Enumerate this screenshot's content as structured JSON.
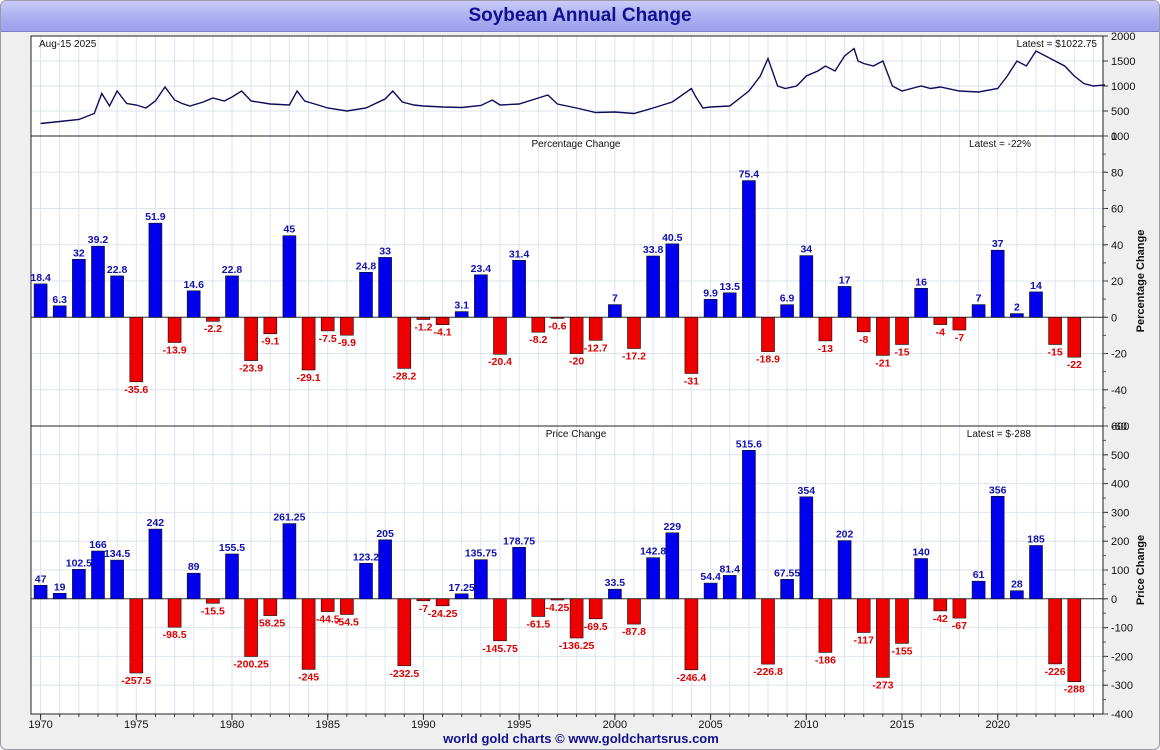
{
  "title": "Soybean Annual Change",
  "footer": "world gold charts © www.goldchartsrus.com",
  "chart_data": [
    {
      "type": "line",
      "name": "price",
      "date_label": "Aug-15  2025",
      "latest_label": "Latest = $1022.75",
      "ylim": [
        0,
        2000
      ],
      "yticks": [
        0,
        500,
        1000,
        1500,
        2000
      ],
      "xlim": [
        1969.5,
        2025.5
      ],
      "x": [
        1970,
        1971,
        1972,
        1972.8,
        1973.2,
        1973.6,
        1974,
        1974.5,
        1975,
        1975.5,
        1976,
        1976.5,
        1977,
        1977.4,
        1977.8,
        1978.5,
        1979,
        1979.6,
        1980,
        1980.5,
        1981,
        1982,
        1983,
        1983.4,
        1983.8,
        1984.5,
        1985,
        1986,
        1987,
        1988,
        1988.4,
        1988.9,
        1989.5,
        1990,
        1991,
        1992,
        1993,
        1993.6,
        1994,
        1995,
        1996,
        1996.5,
        1997,
        1998,
        1999,
        2000,
        2001,
        2002,
        2003,
        2004,
        2004.2,
        2004.6,
        2005,
        2006,
        2007,
        2007.6,
        2008,
        2008.5,
        2008.9,
        2009.5,
        2010,
        2010.6,
        2011,
        2011.5,
        2012,
        2012.5,
        2012.7,
        2013,
        2013.5,
        2014,
        2014.5,
        2015,
        2016,
        2016.5,
        2017,
        2018,
        2019,
        2020,
        2020.5,
        2021,
        2021.5,
        2022,
        2022.5,
        2023,
        2023.5,
        2024,
        2024.5,
        2025,
        2025.6
      ],
      "values": [
        250,
        290,
        330,
        450,
        850,
        600,
        900,
        650,
        620,
        560,
        700,
        980,
        720,
        650,
        600,
        680,
        760,
        700,
        780,
        900,
        700,
        640,
        620,
        900,
        700,
        620,
        560,
        500,
        560,
        740,
        900,
        680,
        620,
        600,
        580,
        570,
        610,
        720,
        620,
        640,
        760,
        820,
        640,
        560,
        470,
        480,
        450,
        560,
        680,
        950,
        800,
        560,
        580,
        600,
        900,
        1200,
        1550,
        1000,
        950,
        1000,
        1200,
        1300,
        1400,
        1300,
        1600,
        1750,
        1500,
        1450,
        1400,
        1500,
        1000,
        900,
        1000,
        950,
        980,
        900,
        880,
        950,
        1200,
        1500,
        1400,
        1700,
        1600,
        1500,
        1400,
        1200,
        1050,
        1000,
        1022.75
      ]
    },
    {
      "type": "bar",
      "name": "percentage_change",
      "title": "Percentage Change",
      "ylabel": "Percentage Change",
      "latest_label": "Latest = -22%",
      "ylim": [
        -60,
        100
      ],
      "yticks": [
        -60,
        -40,
        -20,
        0,
        20,
        40,
        60,
        80,
        100
      ],
      "years": [
        1970,
        1971,
        1972,
        1973,
        1974,
        1975,
        1976,
        1977,
        1978,
        1979,
        1980,
        1981,
        1982,
        1983,
        1984,
        1985,
        1986,
        1987,
        1988,
        1989,
        1990,
        1991,
        1992,
        1993,
        1994,
        1995,
        1996,
        1997,
        1998,
        1999,
        2000,
        2001,
        2002,
        2003,
        2004,
        2005,
        2006,
        2007,
        2008,
        2009,
        2010,
        2011,
        2012,
        2013,
        2014,
        2015,
        2016,
        2017,
        2018,
        2019,
        2020,
        2021,
        2022,
        2023,
        2024
      ],
      "values": [
        18.4,
        6.3,
        32,
        39.2,
        22.8,
        -35.6,
        51.9,
        -13.9,
        14.6,
        -2.2,
        22.8,
        -23.9,
        -9.1,
        45,
        -29.1,
        -7.5,
        -9.9,
        24.8,
        33,
        -28.2,
        -1.2,
        -4.1,
        3.1,
        23.4,
        -20.4,
        31.4,
        -8.2,
        -0.6,
        -20,
        -12.7,
        7,
        -17.2,
        33.8,
        40.5,
        -31,
        9.9,
        13.5,
        75.4,
        -18.9,
        6.9,
        34,
        -13,
        17,
        -8,
        -21,
        -15,
        16,
        -4,
        -7,
        7,
        37,
        2,
        14,
        -15,
        -22
      ],
      "labels": [
        "18.4",
        "6.3",
        "32",
        "39.2",
        "22.8",
        "-35.6",
        "51.9",
        "-13.9",
        "14.6",
        "-2.2",
        "22.8",
        "-23.9",
        "-9.1",
        "45",
        "-29.1",
        "-7.5",
        "-9.9",
        "24.8",
        "33",
        "-28.2",
        "-1.2",
        "-4.1",
        "3.1",
        "23.4",
        "-20.4",
        "31.4",
        "-8.2",
        "-0.6",
        "-20",
        "-12.7",
        "7",
        "-17.2",
        "33.8",
        "40.5",
        "-31",
        "9.9",
        "13.5",
        "75.4",
        "-18.9",
        "6.9",
        "34",
        "-13",
        "17",
        "-8",
        "-21",
        "-15",
        "16",
        "-4",
        "-7",
        "7",
        "37",
        "2",
        "14",
        "-15",
        "-22"
      ]
    },
    {
      "type": "bar",
      "name": "price_change",
      "title": "Price Change",
      "ylabel": "Price Change",
      "latest_label": "Latest = $-288",
      "ylim": [
        -400,
        600
      ],
      "yticks": [
        -400,
        -300,
        -200,
        -100,
        0,
        100,
        200,
        300,
        400,
        500,
        600
      ],
      "years": [
        1970,
        1971,
        1972,
        1973,
        1974,
        1975,
        1976,
        1977,
        1978,
        1979,
        1980,
        1981,
        1982,
        1983,
        1984,
        1985,
        1986,
        1987,
        1988,
        1989,
        1990,
        1991,
        1992,
        1993,
        1994,
        1995,
        1996,
        1997,
        1998,
        1999,
        2000,
        2001,
        2002,
        2003,
        2004,
        2005,
        2006,
        2007,
        2008,
        2009,
        2010,
        2011,
        2012,
        2013,
        2014,
        2015,
        2016,
        2017,
        2018,
        2019,
        2020,
        2021,
        2022,
        2023,
        2024
      ],
      "values": [
        47,
        19,
        102.5,
        166,
        134.5,
        -257.5,
        242,
        -98.5,
        89,
        -15.5,
        155.5,
        -200.25,
        -58.25,
        261.25,
        -245,
        -44.5,
        -54.5,
        123.2,
        205,
        -232.5,
        -7,
        -24.25,
        17.25,
        135.75,
        -145.75,
        178.75,
        -61.5,
        -4.25,
        -136.25,
        -69.5,
        33.5,
        -87.8,
        142.8,
        229,
        -246.4,
        54.4,
        81.4,
        515.6,
        -226.8,
        67.55,
        354,
        -186,
        202,
        -117,
        -273,
        -155,
        140,
        -42,
        -67,
        61,
        356,
        28,
        185,
        -226,
        -288
      ],
      "labels": [
        "47",
        "19",
        "102.5",
        "166",
        "134.5",
        "-257.5",
        "242",
        "-98.5",
        "89",
        "-15.5",
        "155.5",
        "-200.25",
        "-58.25",
        "261.25",
        "-245",
        "-44.5",
        "-54.5",
        "123.2",
        "205",
        "-232.5",
        "-7",
        "-24.25",
        "17.25",
        "135.75",
        "-145.75",
        "178.75",
        "-61.5",
        "-4.25",
        "-136.25",
        "-69.5",
        "33.5",
        "-87.8",
        "142.8",
        "229",
        "-246.4",
        "54.4",
        "81.4",
        "515.6",
        "-226.8",
        "67.55",
        "354",
        "-186",
        "202",
        "-117",
        "-273",
        "-155",
        "140",
        "-42",
        "-67",
        "61",
        "356",
        "28",
        "185",
        "-226",
        "-288"
      ]
    }
  ],
  "x_axis": {
    "ticks": [
      1970,
      1975,
      1980,
      1985,
      1990,
      1995,
      2000,
      2005,
      2010,
      2015,
      2020
    ],
    "tick_labels": [
      "1970",
      "1975",
      "1980",
      "1985",
      "1990",
      "1995",
      "2000",
      "2005",
      "2010",
      "2015",
      "2020"
    ]
  },
  "colors": {
    "positive": "#0000ee",
    "negative": "#ee0000",
    "positive_label": "#1010b0",
    "negative_label": "#dd0000",
    "line": "#0c0c5a",
    "grid": "#dde4ee"
  }
}
